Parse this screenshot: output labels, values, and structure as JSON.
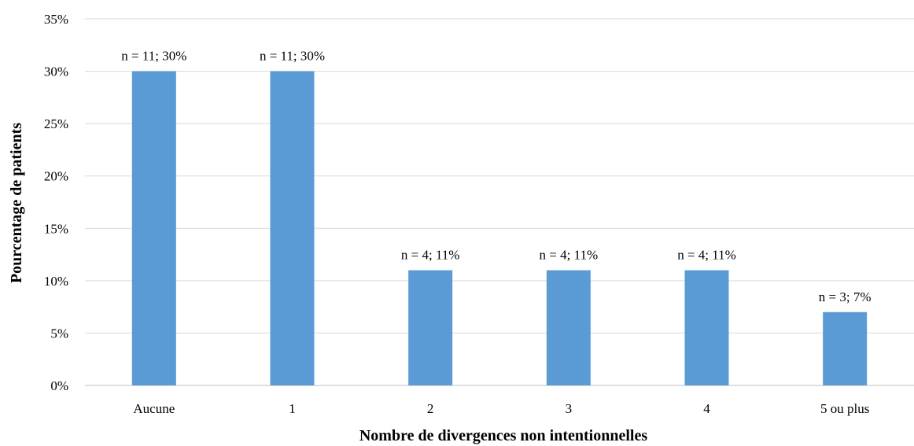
{
  "chart_data": {
    "type": "bar",
    "title": "",
    "xlabel": "Nombre de divergences non intentionnelles",
    "ylabel": "Pourcentage de patients",
    "categories": [
      "Aucune",
      "1",
      "2",
      "3",
      "4",
      "5 ou plus"
    ],
    "values": [
      30,
      30,
      11,
      11,
      11,
      7
    ],
    "data_labels": [
      "n = 11; 30%",
      "n = 11; 30%",
      "n = 4; 11%",
      "n = 4; 11%",
      "n = 4; 11%",
      "n = 3; 7%"
    ],
    "ylim": [
      0,
      35
    ],
    "y_ticks": [
      0,
      5,
      10,
      15,
      20,
      25,
      30,
      35
    ],
    "y_tick_labels": [
      "0%",
      "5%",
      "10%",
      "15%",
      "20%",
      "25%",
      "30%",
      "35%"
    ],
    "grid": true,
    "legend": "none",
    "bar_color": "#5b9bd5"
  }
}
